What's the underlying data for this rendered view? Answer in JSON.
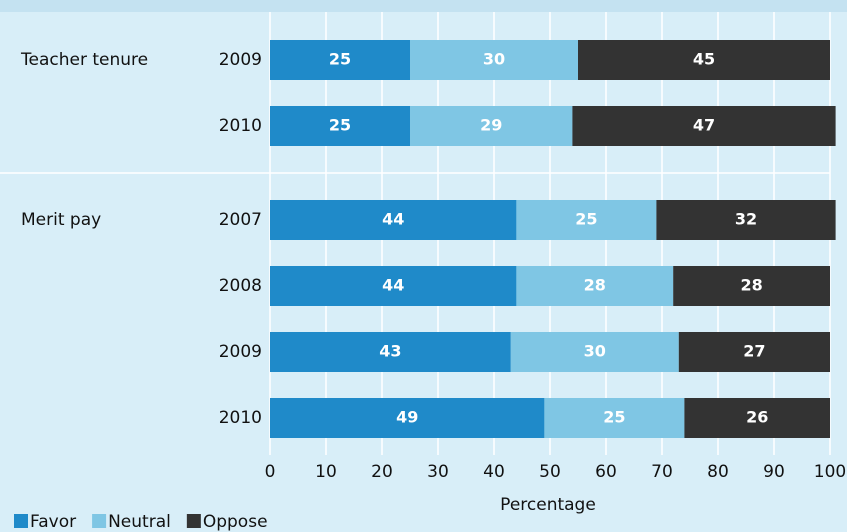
{
  "chart_data": {
    "type": "stacked_bar_horizontal",
    "categories": [
      "2009",
      "2010",
      "2007",
      "2008",
      "2009",
      "2010"
    ],
    "group_labels": [
      "Teacher tenure",
      null,
      "Merit pay",
      null,
      null,
      null
    ],
    "series": [
      {
        "name": "Favor",
        "color": "#1f8ac9",
        "values": [
          25,
          25,
          44,
          44,
          43,
          49
        ]
      },
      {
        "name": "Neutral",
        "color": "#7fc6e4",
        "values": [
          30,
          29,
          25,
          28,
          30,
          25
        ]
      },
      {
        "name": "Oppose",
        "color": "#333333",
        "values": [
          45,
          47,
          32,
          28,
          27,
          26
        ]
      }
    ],
    "x_label": "Percentage",
    "xlim": [
      0,
      100
    ],
    "xticks": [
      0,
      10,
      20,
      30,
      40,
      50,
      60,
      70,
      80,
      90,
      100
    ],
    "grid": true
  }
}
